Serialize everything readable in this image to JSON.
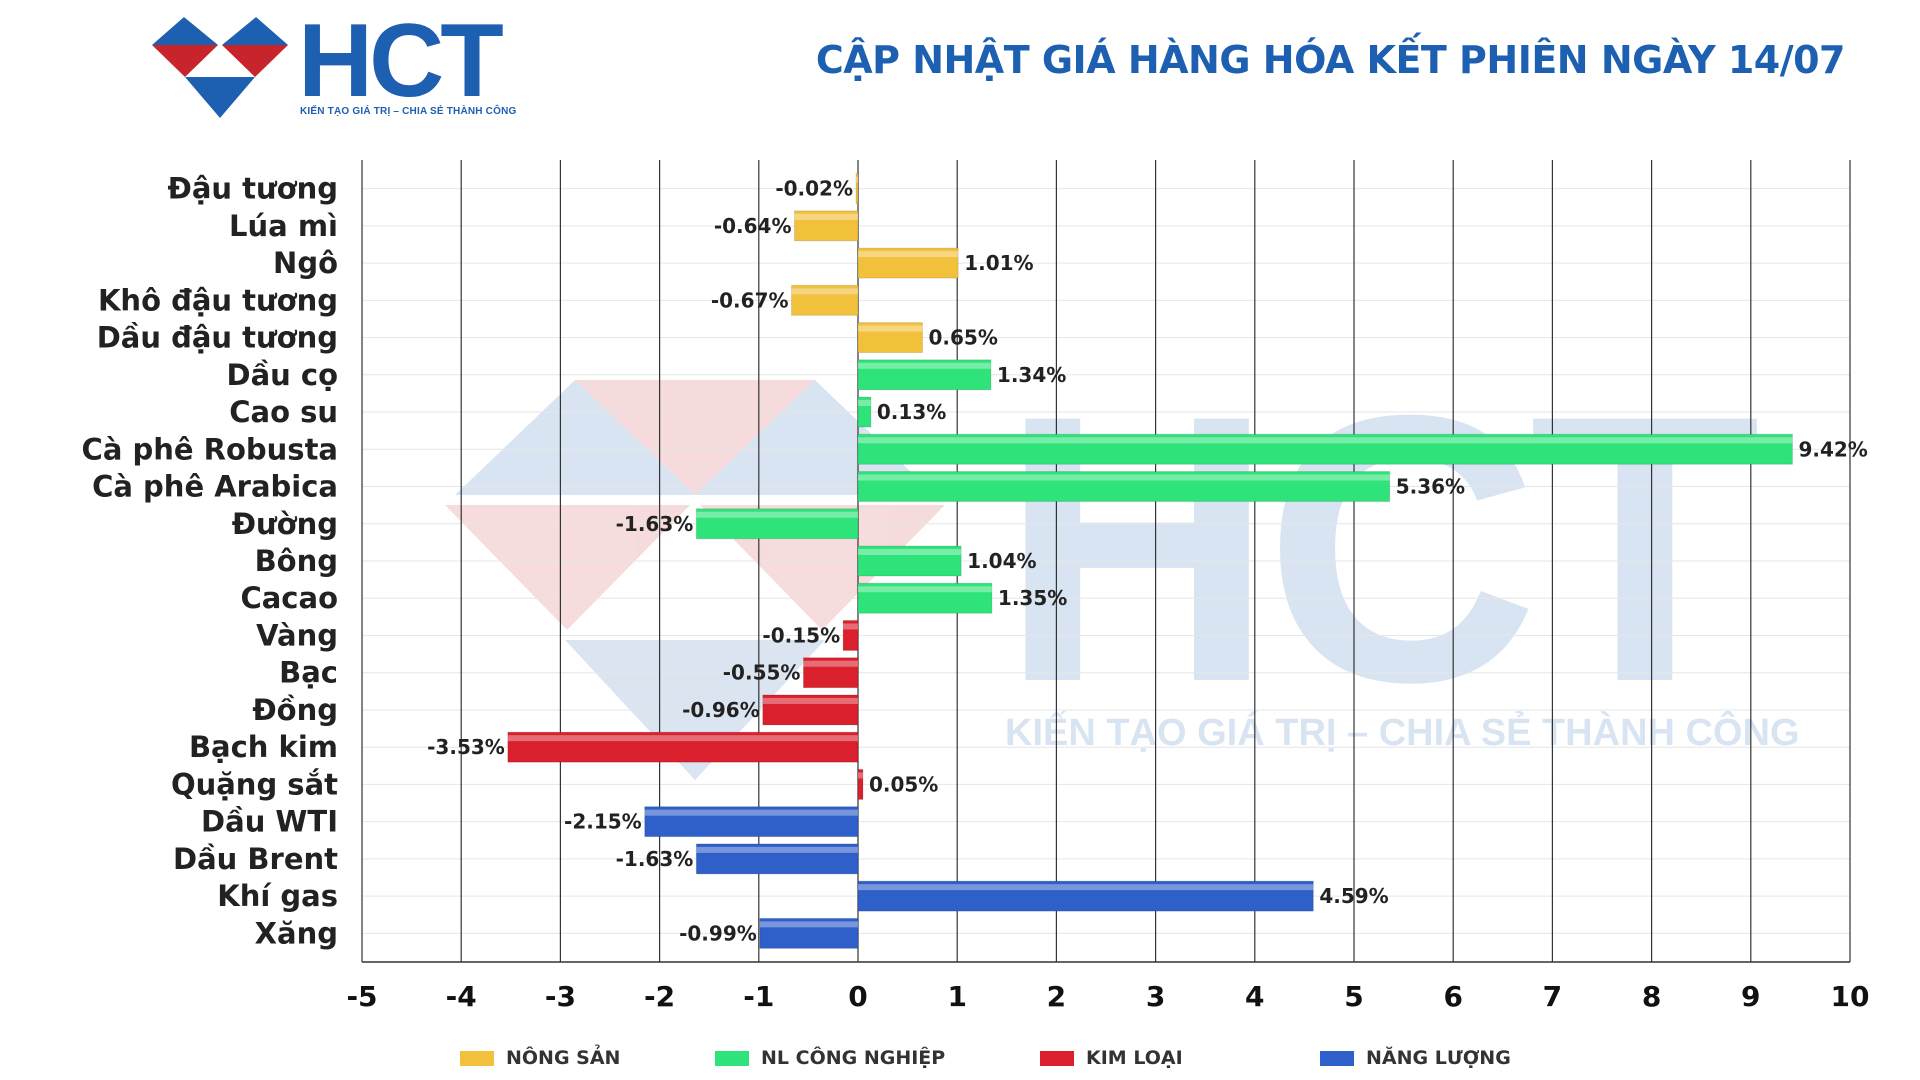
{
  "header": {
    "logo_text": "HCT",
    "logo_tagline": "KIẾN TẠO GIÁ TRỊ – CHIA SẺ THÀNH CÔNG",
    "title": "CẬP NHẬT GIÁ HÀNG HÓA KẾT PHIÊN NGÀY 14/07"
  },
  "watermark": {
    "text": "HCT",
    "tagline": "KIẾN TẠO GIÁ TRỊ – CHIA SẺ THÀNH CÔNG"
  },
  "colors": {
    "brand_blue": "#1d5fb0",
    "brand_red": "#c8242b",
    "nong_san": "#f2c13c",
    "nl_cong_nghiep": "#2ee37a",
    "kim_loai": "#d9202c",
    "nang_luong": "#2f5fc9"
  },
  "legend": [
    {
      "key": "nong_san",
      "label": "NÔNG SẢN",
      "color": "#f2c13c"
    },
    {
      "key": "nl_cong_nghiep",
      "label": "NL CÔNG NGHIỆP",
      "color": "#2ee37a"
    },
    {
      "key": "kim_loai",
      "label": "KIM LOẠI",
      "color": "#d9202c"
    },
    {
      "key": "nang_luong",
      "label": "NĂNG LƯỢNG",
      "color": "#2f5fc9"
    }
  ],
  "chart_data": {
    "type": "bar",
    "orientation": "horizontal",
    "xlim": [
      -5,
      10
    ],
    "xticks": [
      -5,
      -4,
      -3,
      -2,
      -1,
      0,
      1,
      2,
      3,
      4,
      5,
      6,
      7,
      8,
      9,
      10
    ],
    "grid": true,
    "legend_position": "bottom",
    "items": [
      {
        "name": "Đậu tương",
        "value": -0.02,
        "label": "-0.02%",
        "group": "nong_san"
      },
      {
        "name": "Lúa mì",
        "value": -0.64,
        "label": "-0.64%",
        "group": "nong_san"
      },
      {
        "name": "Ngô",
        "value": 1.01,
        "label": "1.01%",
        "group": "nong_san"
      },
      {
        "name": "Khô đậu tương",
        "value": -0.67,
        "label": "-0.67%",
        "group": "nong_san"
      },
      {
        "name": "Dầu đậu tương",
        "value": 0.65,
        "label": "0.65%",
        "group": "nong_san"
      },
      {
        "name": "Dầu cọ",
        "value": 1.34,
        "label": "1.34%",
        "group": "nl_cong_nghiep"
      },
      {
        "name": "Cao su",
        "value": 0.13,
        "label": "0.13%",
        "group": "nl_cong_nghiep"
      },
      {
        "name": "Cà phê Robusta",
        "value": 9.42,
        "label": "9.42%",
        "group": "nl_cong_nghiep"
      },
      {
        "name": "Cà phê Arabica",
        "value": 5.36,
        "label": "5.36%",
        "group": "nl_cong_nghiep"
      },
      {
        "name": "Đường",
        "value": -1.63,
        "label": "-1.63%",
        "group": "nl_cong_nghiep"
      },
      {
        "name": "Bông",
        "value": 1.04,
        "label": "1.04%",
        "group": "nl_cong_nghiep"
      },
      {
        "name": "Cacao",
        "value": 1.35,
        "label": "1.35%",
        "group": "nl_cong_nghiep"
      },
      {
        "name": "Vàng",
        "value": -0.15,
        "label": "-0.15%",
        "group": "kim_loai"
      },
      {
        "name": "Bạc",
        "value": -0.55,
        "label": "-0.55%",
        "group": "kim_loai"
      },
      {
        "name": "Đồng",
        "value": -0.96,
        "label": "-0.96%",
        "group": "kim_loai"
      },
      {
        "name": "Bạch kim",
        "value": -3.53,
        "label": "-3.53%",
        "group": "kim_loai"
      },
      {
        "name": "Quặng sắt",
        "value": 0.05,
        "label": "0.05%",
        "group": "kim_loai"
      },
      {
        "name": "Dầu WTI",
        "value": -2.15,
        "label": "-2.15%",
        "group": "nang_luong"
      },
      {
        "name": "Dầu Brent",
        "value": -1.63,
        "label": "-1.63%",
        "group": "nang_luong"
      },
      {
        "name": "Khí gas",
        "value": 4.59,
        "label": "4.59%",
        "group": "nang_luong"
      },
      {
        "name": "Xăng",
        "value": -0.99,
        "label": "-0.99%",
        "group": "nang_luong"
      }
    ]
  }
}
